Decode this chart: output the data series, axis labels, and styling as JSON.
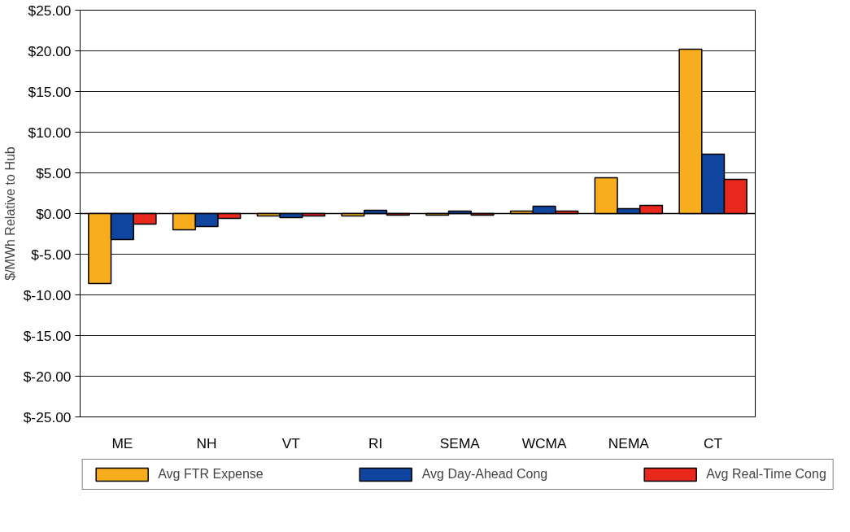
{
  "chart_data": {
    "type": "bar",
    "ylabel": "$/MWh Relative to Hub",
    "categories": [
      "ME",
      "NH",
      "VT",
      "RI",
      "SEMA",
      "WCMA",
      "NEMA",
      "CT"
    ],
    "series": [
      {
        "name": "Avg FTR Expense",
        "color": "#f7ad1e",
        "values": [
          -8.6,
          -2.0,
          -0.3,
          -0.3,
          -0.2,
          0.3,
          4.4,
          20.2
        ]
      },
      {
        "name": "Avg Day-Ahead Cong",
        "color": "#0f459e",
        "values": [
          -3.2,
          -1.6,
          -0.5,
          0.4,
          0.3,
          0.9,
          0.6,
          7.3
        ]
      },
      {
        "name": "Avg Real-Time Cong",
        "color": "#e8271d",
        "values": [
          -1.3,
          -0.6,
          -0.3,
          -0.2,
          -0.2,
          0.3,
          1.0,
          4.2
        ]
      }
    ],
    "ylim": [
      -25,
      25
    ],
    "yticks": [
      {
        "value": -25,
        "label": "$-25.00"
      },
      {
        "value": -20,
        "label": "$-20.00"
      },
      {
        "value": -15,
        "label": "$-15.00"
      },
      {
        "value": -10,
        "label": "$-10.00"
      },
      {
        "value": -5,
        "label": "$-5.00"
      },
      {
        "value": 0,
        "label": "$0.00"
      },
      {
        "value": 5,
        "label": "$5.00"
      },
      {
        "value": 10,
        "label": "$10.00"
      },
      {
        "value": 15,
        "label": "$15.00"
      },
      {
        "value": 20,
        "label": "$20.00"
      },
      {
        "value": 25,
        "label": "$25.00"
      }
    ],
    "grid": "y",
    "legend": "bottom"
  }
}
